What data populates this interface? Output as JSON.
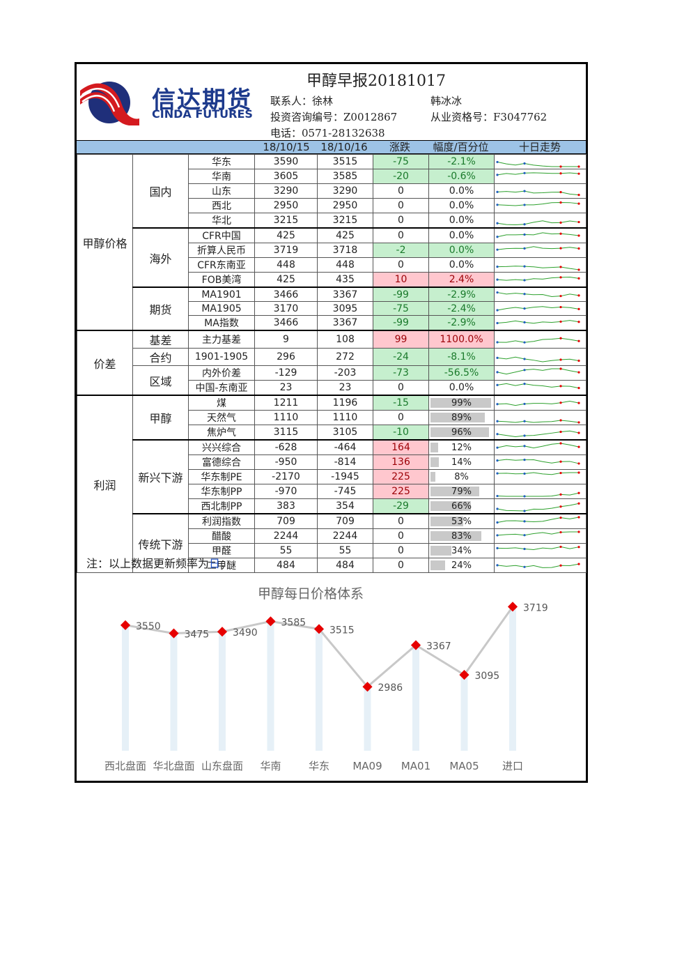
{
  "header": {
    "title": "甲醇早报20181017",
    "brand_cn": "信达期货",
    "brand_en": "CINDA FUTURES",
    "contact1": "联系人：徐林",
    "contact2": "韩冰冰",
    "consult_no": "投资咨询编号：Z0012867",
    "qual_no": "从业资格号：F3047762",
    "phone": "电话：0571-28132638"
  },
  "columns": {
    "d1": "18/10/15",
    "d2": "18/10/16",
    "chg": "涨跌",
    "pct": "幅度/百分位",
    "trend": "十日走势"
  },
  "categories": {
    "price": "甲醇价格",
    "spread": "价差",
    "profit": "利润",
    "domestic": "国内",
    "overseas": "海外",
    "futures": "期货",
    "basis": "基差",
    "contract": "合约",
    "region": "区域",
    "methanol": "甲醇",
    "new_down": "新兴下游",
    "trad_down": "传统下游"
  },
  "rows": [
    {
      "name": "华东",
      "v1": "3590",
      "v2": "3515",
      "chg": "-75",
      "pct": "-2.1%",
      "color": "neg"
    },
    {
      "name": "华南",
      "v1": "3605",
      "v2": "3585",
      "chg": "-20",
      "pct": "-0.6%",
      "color": "neg"
    },
    {
      "name": "山东",
      "v1": "3290",
      "v2": "3290",
      "chg": "0",
      "pct": "0.0%",
      "color": ""
    },
    {
      "name": "西北",
      "v1": "2950",
      "v2": "2950",
      "chg": "0",
      "pct": "0.0%",
      "color": ""
    },
    {
      "name": "华北",
      "v1": "3215",
      "v2": "3215",
      "chg": "0",
      "pct": "0.0%",
      "color": ""
    },
    {
      "name": "CFR中国",
      "v1": "425",
      "v2": "425",
      "chg": "0",
      "pct": "0.0%",
      "color": ""
    },
    {
      "name": "折算人民币",
      "v1": "3719",
      "v2": "3718",
      "chg": "-2",
      "pct": "0.0%",
      "color": "neg"
    },
    {
      "name": "CFR东南亚",
      "v1": "448",
      "v2": "448",
      "chg": "0",
      "pct": "0.0%",
      "color": ""
    },
    {
      "name": "FOB美湾",
      "v1": "425",
      "v2": "435",
      "chg": "10",
      "pct": "2.4%",
      "color": "pos"
    },
    {
      "name": "MA1901",
      "v1": "3466",
      "v2": "3367",
      "chg": "-99",
      "pct": "-2.9%",
      "color": "neg"
    },
    {
      "name": "MA1905",
      "v1": "3170",
      "v2": "3095",
      "chg": "-75",
      "pct": "-2.4%",
      "color": "neg"
    },
    {
      "name": "MA指数",
      "v1": "3466",
      "v2": "3367",
      "chg": "-99",
      "pct": "-2.9%",
      "color": "neg"
    },
    {
      "name": "主力基差",
      "v1": "9",
      "v2": "108",
      "chg": "99",
      "pct": "1100.0%",
      "color": "pos"
    },
    {
      "name": "1901-1905",
      "v1": "296",
      "v2": "272",
      "chg": "-24",
      "pct": "-8.1%",
      "color": "neg"
    },
    {
      "name": "内外价差",
      "v1": "-129",
      "v2": "-203",
      "chg": "-73",
      "pct": "-56.5%",
      "color": "neg"
    },
    {
      "name": "中国-东南亚",
      "v1": "23",
      "v2": "23",
      "chg": "0",
      "pct": "0.0%",
      "color": ""
    },
    {
      "name": "煤",
      "v1": "1211",
      "v2": "1196",
      "chg": "-15",
      "pct": "99%",
      "pctval": 0.99,
      "color": "neg"
    },
    {
      "name": "天然气",
      "v1": "1110",
      "v2": "1110",
      "chg": "0",
      "pct": "89%",
      "pctval": 0.89,
      "color": ""
    },
    {
      "name": "焦炉气",
      "v1": "3115",
      "v2": "3105",
      "chg": "-10",
      "pct": "96%",
      "pctval": 0.96,
      "color": "neg"
    },
    {
      "name": "兴兴综合",
      "v1": "-628",
      "v2": "-464",
      "chg": "164",
      "pct": "12%",
      "pctval": 0.12,
      "color": "pos"
    },
    {
      "name": "富德综合",
      "v1": "-950",
      "v2": "-814",
      "chg": "136",
      "pct": "14%",
      "pctval": 0.14,
      "color": "pos"
    },
    {
      "name": "华东制PE",
      "v1": "-2170",
      "v2": "-1945",
      "chg": "225",
      "pct": "8%",
      "pctval": 0.08,
      "color": "pos"
    },
    {
      "name": "华东制PP",
      "v1": "-970",
      "v2": "-745",
      "chg": "225",
      "pct": "79%",
      "pctval": 0.79,
      "color": "pos"
    },
    {
      "name": "西北制PP",
      "v1": "383",
      "v2": "354",
      "chg": "-29",
      "pct": "66%",
      "pctval": 0.66,
      "color": "neg"
    },
    {
      "name": "利润指数",
      "v1": "709",
      "v2": "709",
      "chg": "0",
      "pct": "53%",
      "pctval": 0.53,
      "color": ""
    },
    {
      "name": "醋酸",
      "v1": "2244",
      "v2": "2244",
      "chg": "0",
      "pct": "83%",
      "pctval": 0.83,
      "color": ""
    },
    {
      "name": "甲醛",
      "v1": "55",
      "v2": "55",
      "chg": "0",
      "pct": "34%",
      "pctval": 0.34,
      "color": ""
    },
    {
      "name": "二甲醚",
      "v1": "484",
      "v2": "484",
      "chg": "0",
      "pct": "24%",
      "pctval": 0.24,
      "color": ""
    }
  ],
  "note": {
    "prefix": "注：以上数据更新频率为",
    "freq": "日",
    "suffix": "；"
  },
  "chart_data": {
    "type": "line",
    "title": "甲醇每日价格体系",
    "categories": [
      "西北盘面",
      "华北盘面",
      "山东盘面",
      "华南",
      "华东",
      "MA09",
      "MA01",
      "MA05",
      "进口"
    ],
    "values": [
      3550,
      3475,
      3490,
      3585,
      3515,
      2986,
      3367,
      3095,
      3719
    ],
    "ylim": [
      2400,
      3900
    ],
    "line_color": "#c8c8c8",
    "marker_color": "#e60000",
    "bar_color": "#d6e6f2"
  }
}
